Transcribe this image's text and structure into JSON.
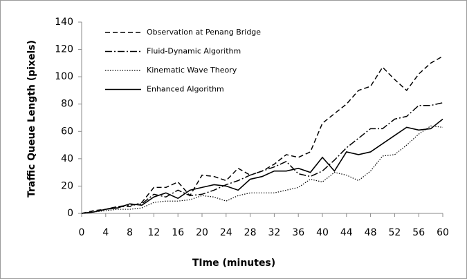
{
  "chart_data": {
    "type": "line",
    "xlabel": "TIme (minutes)",
    "ylabel": "Traffic Queue Length (pixels)",
    "x": [
      0,
      2,
      4,
      6,
      8,
      10,
      12,
      14,
      16,
      18,
      20,
      22,
      24,
      26,
      28,
      30,
      32,
      34,
      36,
      38,
      40,
      42,
      44,
      46,
      48,
      50,
      52,
      54,
      56,
      58,
      60
    ],
    "series": [
      {
        "name": "Observation at Penang Bridge",
        "color": "#000000",
        "dash": "dashed",
        "values": [
          0,
          2,
          3,
          5,
          5,
          8,
          19,
          19,
          23,
          13,
          28,
          27,
          24,
          33,
          28,
          31,
          36,
          43,
          41,
          45,
          66,
          73,
          80,
          90,
          93,
          107,
          98,
          90,
          102,
          110,
          115
        ]
      },
      {
        "name": "Fluid-Dynamic Algorithm",
        "color": "#000000",
        "dash": "dashdot",
        "values": [
          0,
          1,
          3,
          5,
          6,
          7,
          14,
          12,
          17,
          13,
          14,
          17,
          21,
          24,
          28,
          31,
          34,
          38,
          29,
          27,
          31,
          39,
          48,
          55,
          62,
          62,
          69,
          71,
          79,
          79,
          81
        ]
      },
      {
        "name": "Kinematic Wave Theory",
        "color": "#000000",
        "dash": "dotted",
        "values": [
          0,
          1,
          2,
          3,
          3,
          4,
          8,
          9,
          9,
          10,
          13,
          12,
          9,
          13,
          15,
          15,
          15,
          17,
          19,
          25,
          23,
          30,
          28,
          24,
          31,
          42,
          43,
          50,
          58,
          64,
          63
        ]
      },
      {
        "name": "Enhanced Algorithm",
        "color": "#000000",
        "dash": "solid",
        "values": [
          0,
          1,
          3,
          4,
          7,
          6,
          12,
          15,
          11,
          17,
          19,
          21,
          20,
          17,
          25,
          27,
          31,
          31,
          33,
          30,
          41,
          31,
          45,
          43,
          45,
          51,
          57,
          63,
          61,
          62,
          69
        ]
      }
    ],
    "xlim": [
      0,
      60
    ],
    "xticks": [
      0,
      4,
      8,
      12,
      16,
      20,
      24,
      28,
      32,
      36,
      40,
      44,
      48,
      52,
      56,
      60
    ],
    "ylim": [
      0,
      140
    ],
    "yticks": [
      0,
      20,
      40,
      60,
      80,
      100,
      120,
      140
    ],
    "grid": false,
    "legend": "upper left"
  }
}
